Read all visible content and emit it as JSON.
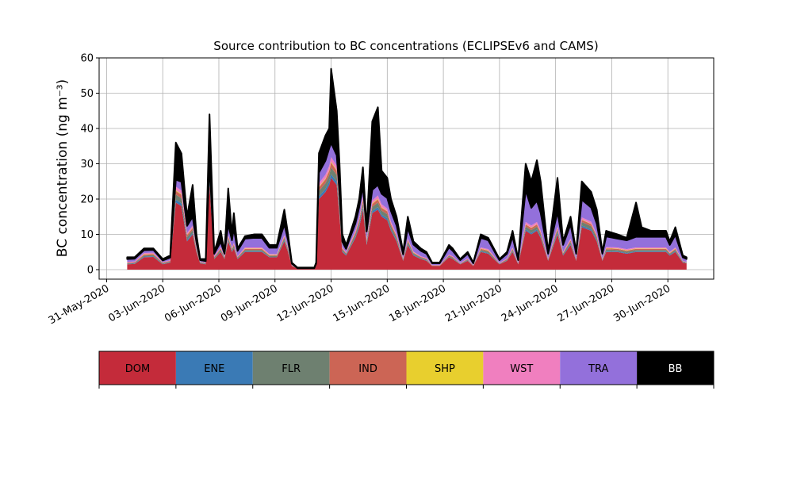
{
  "chart_data": {
    "type": "stacked_area",
    "title": "Source contribution to BC concentrations (ECLIPSEv6 and CAMS)",
    "y_label": "BC concentration (ng m⁻³)",
    "x": [
      1.1,
      1.5,
      2.0,
      2.5,
      3.0,
      3.4,
      3.7,
      4.0,
      4.3,
      4.6,
      4.8,
      5.0,
      5.3,
      5.5,
      5.75,
      6.1,
      6.3,
      6.5,
      6.7,
      6.8,
      7.0,
      7.4,
      7.9,
      8.3,
      8.7,
      9.1,
      9.5,
      9.7,
      9.9,
      10.2,
      11.1,
      11.2,
      11.35,
      11.7,
      11.9,
      12.0,
      12.3,
      12.45,
      12.6,
      12.8,
      13.0,
      13.3,
      13.5,
      13.7,
      13.9,
      14.2,
      14.5,
      14.7,
      15.0,
      15.2,
      15.5,
      15.85,
      16.1,
      16.4,
      16.8,
      17.1,
      17.4,
      17.8,
      18.3,
      18.5,
      18.9,
      19.3,
      19.6,
      20.0,
      20.4,
      20.8,
      21.0,
      21.4,
      21.7,
      22.0,
      22.4,
      22.7,
      23.0,
      23.2,
      23.6,
      24.1,
      24.4,
      24.8,
      25.1,
      25.4,
      25.9,
      26.2,
      26.5,
      26.7,
      27.3,
      27.8,
      28.3,
      28.6,
      29.1,
      29.9,
      30.1,
      30.4,
      30.8,
      31.0
    ],
    "series": [
      {
        "name": "DOM",
        "color": "#c42b3a",
        "values": [
          1.5,
          1.6,
          3.5,
          3.6,
          1.5,
          2,
          19,
          18,
          8,
          10,
          5,
          1.8,
          1.5,
          24,
          3,
          5,
          3,
          8,
          5,
          6,
          3,
          5,
          5,
          5,
          3.5,
          3.5,
          8,
          5,
          1,
          0.3,
          0.3,
          1,
          20,
          22,
          24,
          26,
          24,
          15,
          5,
          4,
          6,
          9,
          12,
          17,
          7,
          16,
          17,
          15,
          14,
          11,
          8,
          2.5,
          7,
          4,
          3,
          2.5,
          1,
          1,
          3.5,
          3,
          1.5,
          2.5,
          1,
          5,
          4.5,
          2.5,
          1.5,
          2.5,
          5,
          1.5,
          11,
          10,
          11,
          9,
          2.5,
          10,
          4,
          7,
          2.5,
          12,
          11,
          8,
          2.5,
          5,
          5,
          4.5,
          5,
          5,
          5,
          5,
          4,
          5,
          2,
          1.8
        ]
      },
      {
        "name": "ENE",
        "color": "#3a7ab5",
        "values": [
          0.1,
          0.1,
          0.2,
          0.2,
          0.1,
          0.1,
          0.8,
          0.8,
          0.4,
          0.4,
          0.2,
          0.1,
          0.1,
          1,
          0.1,
          0.2,
          0.1,
          0.3,
          0.2,
          0.2,
          0.1,
          0.2,
          0.2,
          0.2,
          0.1,
          0.1,
          0.3,
          0.2,
          0,
          0,
          0,
          0,
          0.8,
          0.9,
          1,
          1,
          1,
          0.6,
          0.2,
          0.2,
          0.2,
          0.3,
          0.5,
          0.7,
          0.3,
          0.6,
          0.7,
          0.6,
          0.6,
          0.4,
          0.3,
          0.1,
          0.3,
          0.2,
          0.1,
          0.1,
          0,
          0,
          0.1,
          0.1,
          0.1,
          0.1,
          0,
          0.2,
          0.2,
          0.1,
          0.1,
          0.1,
          0.2,
          0.1,
          0.4,
          0.4,
          0.4,
          0.3,
          0.1,
          0.4,
          0.2,
          0.3,
          0.1,
          0.5,
          0.4,
          0.3,
          0.1,
          0.2,
          0.2,
          0.2,
          0.2,
          0.2,
          0.2,
          0.2,
          0.2,
          0.2,
          0.1,
          0.1
        ]
      },
      {
        "name": "FLR",
        "color": "#6e8070",
        "values": [
          0.2,
          0.2,
          0.3,
          0.3,
          0.2,
          0.2,
          1.5,
          1.4,
          0.8,
          0.8,
          0.4,
          0.2,
          0.2,
          1.5,
          0.3,
          0.5,
          0.3,
          0.6,
          0.4,
          0.5,
          0.3,
          0.4,
          0.4,
          0.4,
          0.3,
          0.3,
          0.6,
          0.4,
          0.1,
          0,
          0,
          0.1,
          1.5,
          1.6,
          1.8,
          2,
          1.8,
          1.2,
          0.5,
          0.3,
          0.5,
          0.7,
          0.9,
          1.2,
          0.6,
          1.2,
          1.3,
          1.1,
          1.1,
          0.9,
          0.7,
          0.3,
          0.6,
          0.4,
          0.3,
          0.3,
          0.1,
          0.1,
          0.3,
          0.3,
          0.1,
          0.2,
          0.1,
          0.4,
          0.4,
          0.2,
          0.1,
          0.2,
          0.4,
          0.1,
          0.8,
          0.8,
          0.8,
          0.7,
          0.2,
          0.8,
          0.3,
          0.6,
          0.2,
          1,
          0.9,
          0.7,
          0.2,
          0.5,
          0.4,
          0.4,
          0.4,
          0.4,
          0.4,
          0.4,
          0.3,
          0.4,
          0.2,
          0.1
        ]
      },
      {
        "name": "IND",
        "color": "#cc6555",
        "values": [
          0.2,
          0.2,
          0.3,
          0.3,
          0.2,
          0.2,
          1,
          1,
          0.6,
          0.6,
          0.3,
          0.1,
          0.1,
          1,
          0.2,
          0.3,
          0.2,
          0.4,
          0.3,
          0.4,
          0.2,
          0.3,
          0.3,
          0.3,
          0.2,
          0.2,
          0.4,
          0.3,
          0.1,
          0,
          0,
          0.1,
          1,
          1.1,
          1.2,
          1.3,
          1.2,
          0.8,
          0.3,
          0.2,
          0.3,
          0.5,
          0.6,
          0.8,
          0.4,
          0.8,
          0.9,
          0.8,
          0.8,
          0.6,
          0.5,
          0.2,
          0.4,
          0.2,
          0.2,
          0.2,
          0.1,
          0.1,
          0.2,
          0.2,
          0.1,
          0.2,
          0.1,
          0.3,
          0.3,
          0.2,
          0.1,
          0.2,
          0.3,
          0.1,
          0.6,
          0.6,
          0.6,
          0.5,
          0.2,
          0.5,
          0.2,
          0.4,
          0.2,
          0.6,
          0.6,
          0.5,
          0.2,
          0.3,
          0.3,
          0.3,
          0.3,
          0.3,
          0.3,
          0.3,
          0.2,
          0.3,
          0.1,
          0.1
        ]
      },
      {
        "name": "SHP",
        "color": "#e8cf2e",
        "values": [
          0,
          0,
          0.1,
          0.1,
          0,
          0,
          0.2,
          0.2,
          0.1,
          0.1,
          0.1,
          0,
          0,
          0.2,
          0,
          0.1,
          0,
          0.1,
          0.1,
          0.1,
          0,
          0.1,
          0.1,
          0.1,
          0.1,
          0.1,
          0.1,
          0.1,
          0,
          0,
          0,
          0,
          0.2,
          0.2,
          0.2,
          0.3,
          0.2,
          0.1,
          0.1,
          0,
          0.1,
          0.1,
          0.1,
          0.2,
          0.1,
          0.2,
          0.2,
          0.2,
          0.1,
          0.1,
          0.1,
          0,
          0.1,
          0.1,
          0,
          0,
          0,
          0,
          0,
          0,
          0,
          0,
          0,
          0.1,
          0.1,
          0,
          0,
          0,
          0.1,
          0,
          0.1,
          0.1,
          0.1,
          0.1,
          0,
          0.1,
          0.1,
          0.1,
          0,
          0.1,
          0.1,
          0.1,
          0,
          0.1,
          0.1,
          0.1,
          0.1,
          0.1,
          0.1,
          0.1,
          0.1,
          0.1,
          0,
          0
        ]
      },
      {
        "name": "WST",
        "color": "#f07fbf",
        "values": [
          0.2,
          0.2,
          0.3,
          0.3,
          0.1,
          0.2,
          1,
          1,
          0.5,
          0.6,
          0.3,
          0.1,
          0.1,
          1,
          0.2,
          0.3,
          0.2,
          0.4,
          0.3,
          0.4,
          0.2,
          0.3,
          0.3,
          0.3,
          0.2,
          0.2,
          0.4,
          0.3,
          0.1,
          0,
          0,
          0.1,
          1,
          1.1,
          1.2,
          1.3,
          1.2,
          0.8,
          0.3,
          0.2,
          0.3,
          0.5,
          0.6,
          0.8,
          0.4,
          0.8,
          0.9,
          0.8,
          0.7,
          0.6,
          0.4,
          0.2,
          0.4,
          0.2,
          0.2,
          0.2,
          0.1,
          0.1,
          0.2,
          0.2,
          0.1,
          0.2,
          0.1,
          0.3,
          0.3,
          0.2,
          0.1,
          0.2,
          0.3,
          0.1,
          0.6,
          0.6,
          0.6,
          0.5,
          0.2,
          0.5,
          0.2,
          0.4,
          0.2,
          0.6,
          0.6,
          0.4,
          0.2,
          0.3,
          0.3,
          0.3,
          0.3,
          0.3,
          0.3,
          0.3,
          0.2,
          0.3,
          0.1,
          0.1
        ]
      },
      {
        "name": "TRA",
        "color": "#9370db",
        "values": [
          0.8,
          0.8,
          0.8,
          0.8,
          0.5,
          0.7,
          2,
          2.5,
          2,
          2.5,
          1.5,
          0.4,
          0.4,
          1.3,
          0.7,
          1.5,
          0.7,
          3,
          2,
          4,
          1.5,
          2.5,
          2.7,
          2.7,
          1.8,
          1.8,
          3,
          2,
          0.4,
          0.1,
          0.1,
          0.4,
          3,
          4,
          5,
          4,
          3,
          3,
          1.5,
          1,
          1.5,
          2,
          3,
          3,
          2,
          3,
          3,
          3,
          3,
          3,
          2.5,
          1,
          3,
          2,
          1.5,
          1.2,
          0.5,
          0.5,
          2,
          1.5,
          0.8,
          1.3,
          0.5,
          2.7,
          2.5,
          1.3,
          0.8,
          1.3,
          3,
          0.8,
          9,
          5,
          6,
          5,
          1.3,
          4,
          2,
          4,
          1.3,
          5,
          4,
          3,
          1.3,
          3,
          2.5,
          2.5,
          3,
          3,
          3,
          3,
          2,
          3.5,
          1,
          0.8
        ]
      },
      {
        "name": "BB",
        "color": "#000000",
        "values": [
          0.5,
          0.4,
          0.5,
          0.4,
          0.4,
          0.6,
          10.5,
          8,
          2.6,
          9,
          2.2,
          0.3,
          0.6,
          14,
          0.5,
          3.1,
          0.5,
          10.2,
          1.7,
          4.4,
          0.7,
          0.7,
          1,
          1,
          0.8,
          0.8,
          4.2,
          1.7,
          0.3,
          0.2,
          0.2,
          0.3,
          5.5,
          7.1,
          5.6,
          21,
          12.6,
          8.5,
          2.1,
          1.1,
          1.1,
          1.9,
          2.3,
          5.3,
          1.2,
          19.4,
          22,
          6.5,
          5.7,
          3.4,
          2.5,
          0.7,
          3.2,
          0.9,
          0.7,
          0.5,
          0.2,
          0.2,
          0.7,
          0.7,
          0.3,
          0.5,
          0.2,
          1,
          0.7,
          0.5,
          0.3,
          0.5,
          1.7,
          0.3,
          7.5,
          7.5,
          11.5,
          8.9,
          0.5,
          9.7,
          1,
          2.2,
          0.5,
          5.2,
          4.4,
          4,
          0.5,
          1.6,
          1.2,
          0.7,
          9.7,
          2.7,
          1.7,
          1.7,
          1,
          2.2,
          0.5,
          0.5
        ]
      }
    ],
    "xlim": [
      -0.4,
      32.45
    ],
    "xticks": [
      {
        "value": 0,
        "label": "31-May-2020"
      },
      {
        "value": 3,
        "label": "03-Jun-2020"
      },
      {
        "value": 6,
        "label": "06-Jun-2020"
      },
      {
        "value": 9,
        "label": "09-Jun-2020"
      },
      {
        "value": 12,
        "label": "12-Jun-2020"
      },
      {
        "value": 15,
        "label": "15-Jun-2020"
      },
      {
        "value": 18,
        "label": "18-Jun-2020"
      },
      {
        "value": 21,
        "label": "21-Jun-2020"
      },
      {
        "value": 24,
        "label": "24-Jun-2020"
      },
      {
        "value": 27,
        "label": "27-Jun-2020"
      },
      {
        "value": 30,
        "label": "30-Jun-2020"
      }
    ],
    "ylim": [
      -2.7,
      60
    ],
    "yticks": [
      0,
      10,
      20,
      30,
      40,
      50,
      60
    ],
    "grid": true
  }
}
